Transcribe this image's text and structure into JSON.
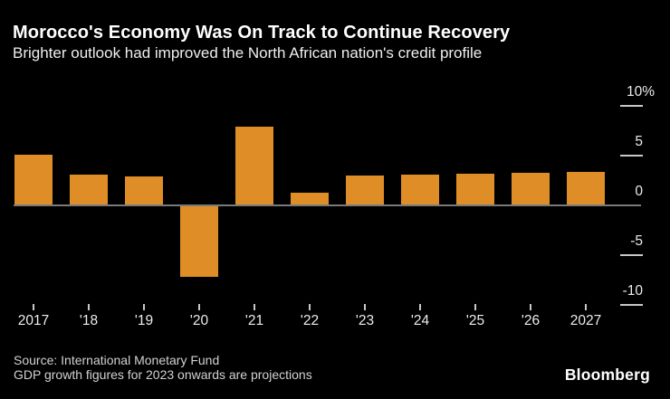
{
  "header": {
    "title": "Morocco's Economy Was On Track to Continue Recovery",
    "subtitle": "Brighter outlook had improved the North African nation's credit profile"
  },
  "chart_data": {
    "type": "bar",
    "title": "Morocco's Economy Was On Track to Continue Recovery",
    "subtitle": "Brighter outlook had improved the North African nation's credit profile",
    "unit": "% GDP growth",
    "categories": [
      "2017",
      "'18",
      "'19",
      "'20",
      "'21",
      "'22",
      "'23",
      "'24",
      "'25",
      "'26",
      "2027"
    ],
    "values": [
      5.1,
      3.1,
      2.9,
      -7.2,
      7.9,
      1.3,
      3.0,
      3.1,
      3.2,
      3.3,
      3.4
    ],
    "baseline": 0,
    "ylim": [
      -11,
      10.5
    ],
    "grid": "off",
    "legend": "none",
    "y_axis": {
      "side": "right",
      "ticks": [
        {
          "value": 10,
          "label": "10%"
        },
        {
          "value": 5,
          "label": "5"
        },
        {
          "value": 0,
          "label": "0"
        },
        {
          "value": -5,
          "label": "-5"
        },
        {
          "value": -10,
          "label": "-10"
        }
      ]
    }
  },
  "footer": {
    "source_line1": "Source: International Monetary Fund",
    "source_line2": "GDP growth figures for 2023 onwards are projections",
    "brand": "Bloomberg"
  },
  "colors": {
    "background": "#000000",
    "bar": "#DE8D27",
    "zero_line": "#7A7A7A",
    "tick": "#C8C8C8",
    "axis_label": "#ECECEC",
    "title": "#FFFFFF",
    "subtitle": "#EFEFEF",
    "source_text": "#D2D2D2",
    "brand_text": "#FFFFFF"
  }
}
